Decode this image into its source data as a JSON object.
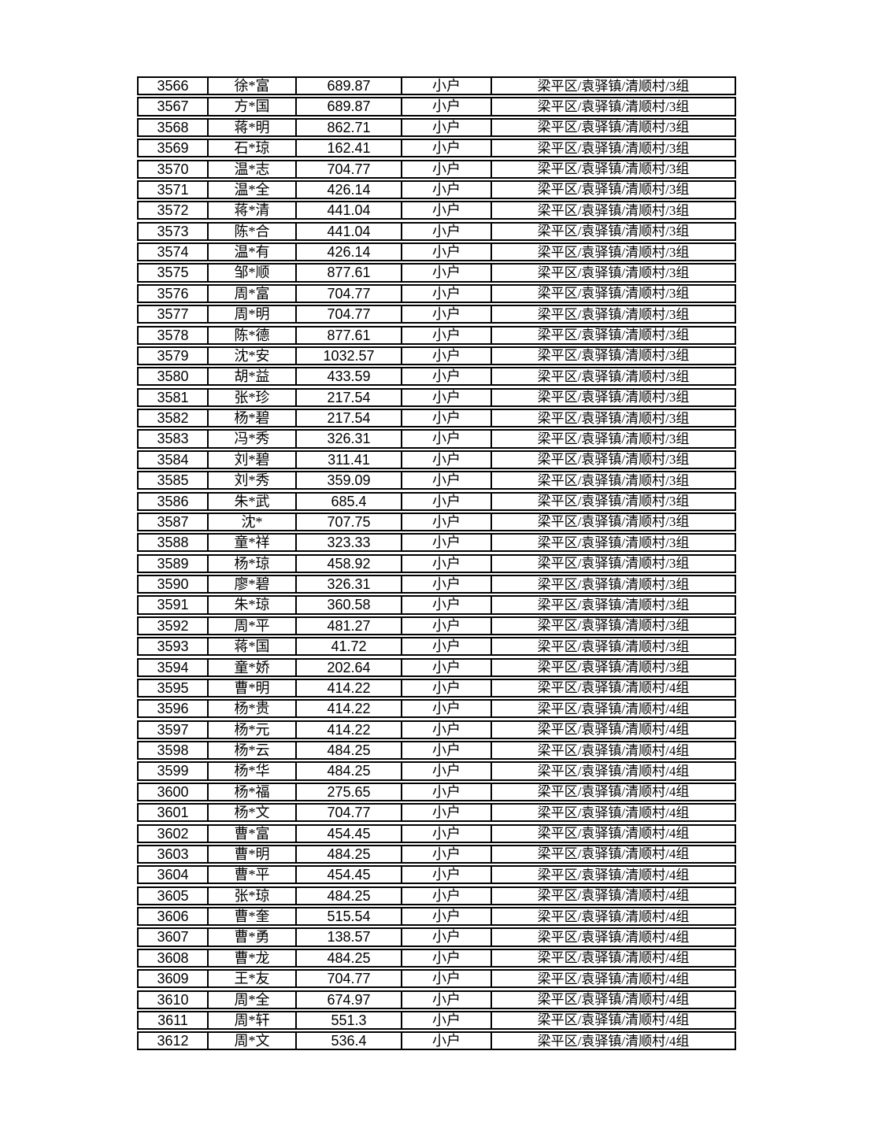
{
  "document": {
    "background_color": "#ffffff",
    "border_color": "#000000",
    "text_color": "#000000",
    "household_type_label": "小户",
    "location_group3": "梁平区/袁驿镇/清顺村/3组",
    "location_group4": "梁平区/袁驿镇/清顺村/4组"
  },
  "table": {
    "has_header": false,
    "columns": [
      "serial_number",
      "masked_name",
      "amount",
      "household_type",
      "location"
    ],
    "rows": [
      {
        "id": "3566",
        "name": "徐*富",
        "amount": "689.87",
        "type": "小户",
        "location": "梁平区/袁驿镇/清顺村/3组"
      },
      {
        "id": "3567",
        "name": "方*国",
        "amount": "689.87",
        "type": "小户",
        "location": "梁平区/袁驿镇/清顺村/3组"
      },
      {
        "id": "3568",
        "name": "蒋*明",
        "amount": "862.71",
        "type": "小户",
        "location": "梁平区/袁驿镇/清顺村/3组"
      },
      {
        "id": "3569",
        "name": "石*琼",
        "amount": "162.41",
        "type": "小户",
        "location": "梁平区/袁驿镇/清顺村/3组"
      },
      {
        "id": "3570",
        "name": "温*志",
        "amount": "704.77",
        "type": "小户",
        "location": "梁平区/袁驿镇/清顺村/3组"
      },
      {
        "id": "3571",
        "name": "温*全",
        "amount": "426.14",
        "type": "小户",
        "location": "梁平区/袁驿镇/清顺村/3组"
      },
      {
        "id": "3572",
        "name": "蒋*清",
        "amount": "441.04",
        "type": "小户",
        "location": "梁平区/袁驿镇/清顺村/3组"
      },
      {
        "id": "3573",
        "name": "陈*合",
        "amount": "441.04",
        "type": "小户",
        "location": "梁平区/袁驿镇/清顺村/3组"
      },
      {
        "id": "3574",
        "name": "温*有",
        "amount": "426.14",
        "type": "小户",
        "location": "梁平区/袁驿镇/清顺村/3组"
      },
      {
        "id": "3575",
        "name": "邹*顺",
        "amount": "877.61",
        "type": "小户",
        "location": "梁平区/袁驿镇/清顺村/3组"
      },
      {
        "id": "3576",
        "name": "周*富",
        "amount": "704.77",
        "type": "小户",
        "location": "梁平区/袁驿镇/清顺村/3组"
      },
      {
        "id": "3577",
        "name": "周*明",
        "amount": "704.77",
        "type": "小户",
        "location": "梁平区/袁驿镇/清顺村/3组"
      },
      {
        "id": "3578",
        "name": "陈*德",
        "amount": "877.61",
        "type": "小户",
        "location": "梁平区/袁驿镇/清顺村/3组"
      },
      {
        "id": "3579",
        "name": "沈*安",
        "amount": "1032.57",
        "type": "小户",
        "location": "梁平区/袁驿镇/清顺村/3组"
      },
      {
        "id": "3580",
        "name": "胡*益",
        "amount": "433.59",
        "type": "小户",
        "location": "梁平区/袁驿镇/清顺村/3组"
      },
      {
        "id": "3581",
        "name": "张*珍",
        "amount": "217.54",
        "type": "小户",
        "location": "梁平区/袁驿镇/清顺村/3组"
      },
      {
        "id": "3582",
        "name": "杨*碧",
        "amount": "217.54",
        "type": "小户",
        "location": "梁平区/袁驿镇/清顺村/3组"
      },
      {
        "id": "3583",
        "name": "冯*秀",
        "amount": "326.31",
        "type": "小户",
        "location": "梁平区/袁驿镇/清顺村/3组"
      },
      {
        "id": "3584",
        "name": "刘*碧",
        "amount": "311.41",
        "type": "小户",
        "location": "梁平区/袁驿镇/清顺村/3组"
      },
      {
        "id": "3585",
        "name": "刘*秀",
        "amount": "359.09",
        "type": "小户",
        "location": "梁平区/袁驿镇/清顺村/3组"
      },
      {
        "id": "3586",
        "name": "朱*武",
        "amount": "685.4",
        "type": "小户",
        "location": "梁平区/袁驿镇/清顺村/3组"
      },
      {
        "id": "3587",
        "name": "沈*",
        "amount": "707.75",
        "type": "小户",
        "location": "梁平区/袁驿镇/清顺村/3组"
      },
      {
        "id": "3588",
        "name": "童*祥",
        "amount": "323.33",
        "type": "小户",
        "location": "梁平区/袁驿镇/清顺村/3组"
      },
      {
        "id": "3589",
        "name": "杨*琼",
        "amount": "458.92",
        "type": "小户",
        "location": "梁平区/袁驿镇/清顺村/3组"
      },
      {
        "id": "3590",
        "name": "廖*碧",
        "amount": "326.31",
        "type": "小户",
        "location": "梁平区/袁驿镇/清顺村/3组"
      },
      {
        "id": "3591",
        "name": "朱*琼",
        "amount": "360.58",
        "type": "小户",
        "location": "梁平区/袁驿镇/清顺村/3组"
      },
      {
        "id": "3592",
        "name": "周*平",
        "amount": "481.27",
        "type": "小户",
        "location": "梁平区/袁驿镇/清顺村/3组"
      },
      {
        "id": "3593",
        "name": "蒋*国",
        "amount": "41.72",
        "type": "小户",
        "location": "梁平区/袁驿镇/清顺村/3组"
      },
      {
        "id": "3594",
        "name": "童*娇",
        "amount": "202.64",
        "type": "小户",
        "location": "梁平区/袁驿镇/清顺村/3组"
      },
      {
        "id": "3595",
        "name": "曹*明",
        "amount": "414.22",
        "type": "小户",
        "location": "梁平区/袁驿镇/清顺村/4组"
      },
      {
        "id": "3596",
        "name": "杨*贵",
        "amount": "414.22",
        "type": "小户",
        "location": "梁平区/袁驿镇/清顺村/4组"
      },
      {
        "id": "3597",
        "name": "杨*元",
        "amount": "414.22",
        "type": "小户",
        "location": "梁平区/袁驿镇/清顺村/4组"
      },
      {
        "id": "3598",
        "name": "杨*云",
        "amount": "484.25",
        "type": "小户",
        "location": "梁平区/袁驿镇/清顺村/4组"
      },
      {
        "id": "3599",
        "name": "杨*华",
        "amount": "484.25",
        "type": "小户",
        "location": "梁平区/袁驿镇/清顺村/4组"
      },
      {
        "id": "3600",
        "name": "杨*福",
        "amount": "275.65",
        "type": "小户",
        "location": "梁平区/袁驿镇/清顺村/4组"
      },
      {
        "id": "3601",
        "name": "杨*文",
        "amount": "704.77",
        "type": "小户",
        "location": "梁平区/袁驿镇/清顺村/4组"
      },
      {
        "id": "3602",
        "name": "曹*富",
        "amount": "454.45",
        "type": "小户",
        "location": "梁平区/袁驿镇/清顺村/4组"
      },
      {
        "id": "3603",
        "name": "曹*明",
        "amount": "484.25",
        "type": "小户",
        "location": "梁平区/袁驿镇/清顺村/4组"
      },
      {
        "id": "3604",
        "name": "曹*平",
        "amount": "454.45",
        "type": "小户",
        "location": "梁平区/袁驿镇/清顺村/4组"
      },
      {
        "id": "3605",
        "name": "张*琼",
        "amount": "484.25",
        "type": "小户",
        "location": "梁平区/袁驿镇/清顺村/4组"
      },
      {
        "id": "3606",
        "name": "曹*奎",
        "amount": "515.54",
        "type": "小户",
        "location": "梁平区/袁驿镇/清顺村/4组"
      },
      {
        "id": "3607",
        "name": "曹*勇",
        "amount": "138.57",
        "type": "小户",
        "location": "梁平区/袁驿镇/清顺村/4组"
      },
      {
        "id": "3608",
        "name": "曹*龙",
        "amount": "484.25",
        "type": "小户",
        "location": "梁平区/袁驿镇/清顺村/4组"
      },
      {
        "id": "3609",
        "name": "王*友",
        "amount": "704.77",
        "type": "小户",
        "location": "梁平区/袁驿镇/清顺村/4组"
      },
      {
        "id": "3610",
        "name": "周*全",
        "amount": "674.97",
        "type": "小户",
        "location": "梁平区/袁驿镇/清顺村/4组"
      },
      {
        "id": "3611",
        "name": "周*轩",
        "amount": "551.3",
        "type": "小户",
        "location": "梁平区/袁驿镇/清顺村/4组"
      },
      {
        "id": "3612",
        "name": "周*文",
        "amount": "536.4",
        "type": "小户",
        "location": "梁平区/袁驿镇/清顺村/4组"
      }
    ]
  }
}
